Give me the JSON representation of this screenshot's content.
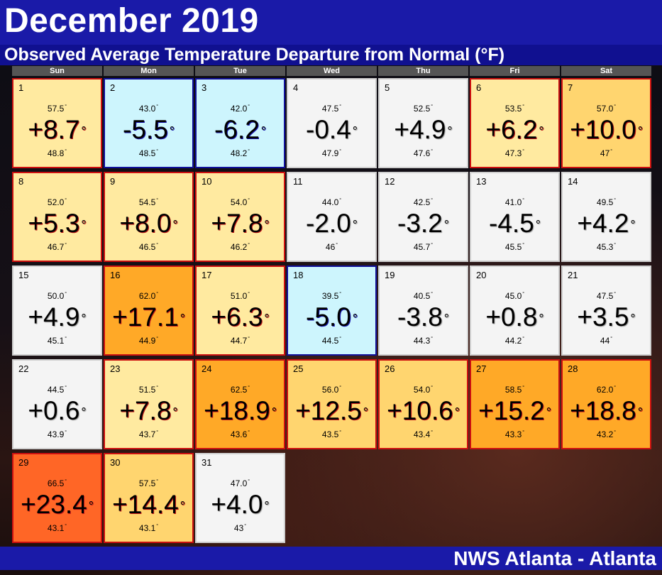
{
  "title": "December 2019",
  "subtitle": "Observed Average Temperature Departure from Normal (°F)",
  "footer": "NWS Atlanta - Atlanta",
  "degree_symbol": "°",
  "days_of_week": [
    "Sun",
    "Mon",
    "Tue",
    "Wed",
    "Thu",
    "Fri",
    "Sat"
  ],
  "colors": {
    "neutral": "#f4f4f4",
    "cold": "#cdf5fd",
    "warm_light": "#ffeaa0",
    "warm_medium": "#ffd56f",
    "warm_strong": "#ffa927",
    "warm_extreme": "#ff6626",
    "title_bar": "#1a1aa8"
  },
  "days": [
    {
      "day": "1",
      "avg": "57.5",
      "departure": "+8.7",
      "normal": "48.8",
      "category": "warm1"
    },
    {
      "day": "2",
      "avg": "43.0",
      "departure": "-5.5",
      "normal": "48.5",
      "category": "cold"
    },
    {
      "day": "3",
      "avg": "42.0",
      "departure": "-6.2",
      "normal": "48.2",
      "category": "cold"
    },
    {
      "day": "4",
      "avg": "47.5",
      "departure": "-0.4",
      "normal": "47.9",
      "category": "neutral"
    },
    {
      "day": "5",
      "avg": "52.5",
      "departure": "+4.9",
      "normal": "47.6",
      "category": "neutral"
    },
    {
      "day": "6",
      "avg": "53.5",
      "departure": "+6.2",
      "normal": "47.3",
      "category": "warm1"
    },
    {
      "day": "7",
      "avg": "57.0",
      "departure": "+10.0",
      "normal": "47",
      "category": "warm2"
    },
    {
      "day": "8",
      "avg": "52.0",
      "departure": "+5.3",
      "normal": "46.7",
      "category": "warm1"
    },
    {
      "day": "9",
      "avg": "54.5",
      "departure": "+8.0",
      "normal": "46.5",
      "category": "warm1"
    },
    {
      "day": "10",
      "avg": "54.0",
      "departure": "+7.8",
      "normal": "46.2",
      "category": "warm1"
    },
    {
      "day": "11",
      "avg": "44.0",
      "departure": "-2.0",
      "normal": "46",
      "category": "neutral"
    },
    {
      "day": "12",
      "avg": "42.5",
      "departure": "-3.2",
      "normal": "45.7",
      "category": "neutral"
    },
    {
      "day": "13",
      "avg": "41.0",
      "departure": "-4.5",
      "normal": "45.5",
      "category": "neutral"
    },
    {
      "day": "14",
      "avg": "49.5",
      "departure": "+4.2",
      "normal": "45.3",
      "category": "neutral"
    },
    {
      "day": "15",
      "avg": "50.0",
      "departure": "+4.9",
      "normal": "45.1",
      "category": "neutral"
    },
    {
      "day": "16",
      "avg": "62.0",
      "departure": "+17.1",
      "normal": "44.9",
      "category": "warm3"
    },
    {
      "day": "17",
      "avg": "51.0",
      "departure": "+6.3",
      "normal": "44.7",
      "category": "warm1"
    },
    {
      "day": "18",
      "avg": "39.5",
      "departure": "-5.0",
      "normal": "44.5",
      "category": "cold"
    },
    {
      "day": "19",
      "avg": "40.5",
      "departure": "-3.8",
      "normal": "44.3",
      "category": "neutral"
    },
    {
      "day": "20",
      "avg": "45.0",
      "departure": "+0.8",
      "normal": "44.2",
      "category": "neutral"
    },
    {
      "day": "21",
      "avg": "47.5",
      "departure": "+3.5",
      "normal": "44",
      "category": "neutral"
    },
    {
      "day": "22",
      "avg": "44.5",
      "departure": "+0.6",
      "normal": "43.9",
      "category": "neutral"
    },
    {
      "day": "23",
      "avg": "51.5",
      "departure": "+7.8",
      "normal": "43.7",
      "category": "warm1"
    },
    {
      "day": "24",
      "avg": "62.5",
      "departure": "+18.9",
      "normal": "43.6",
      "category": "warm3"
    },
    {
      "day": "25",
      "avg": "56.0",
      "departure": "+12.5",
      "normal": "43.5",
      "category": "warm2"
    },
    {
      "day": "26",
      "avg": "54.0",
      "departure": "+10.6",
      "normal": "43.4",
      "category": "warm2"
    },
    {
      "day": "27",
      "avg": "58.5",
      "departure": "+15.2",
      "normal": "43.3",
      "category": "warm3"
    },
    {
      "day": "28",
      "avg": "62.0",
      "departure": "+18.8",
      "normal": "43.2",
      "category": "warm3"
    },
    {
      "day": "29",
      "avg": "66.5",
      "departure": "+23.4",
      "normal": "43.1",
      "category": "warm4"
    },
    {
      "day": "30",
      "avg": "57.5",
      "departure": "+14.4",
      "normal": "43.1",
      "category": "warm2"
    },
    {
      "day": "31",
      "avg": "47.0",
      "departure": "+4.0",
      "normal": "43",
      "category": "neutral"
    }
  ]
}
